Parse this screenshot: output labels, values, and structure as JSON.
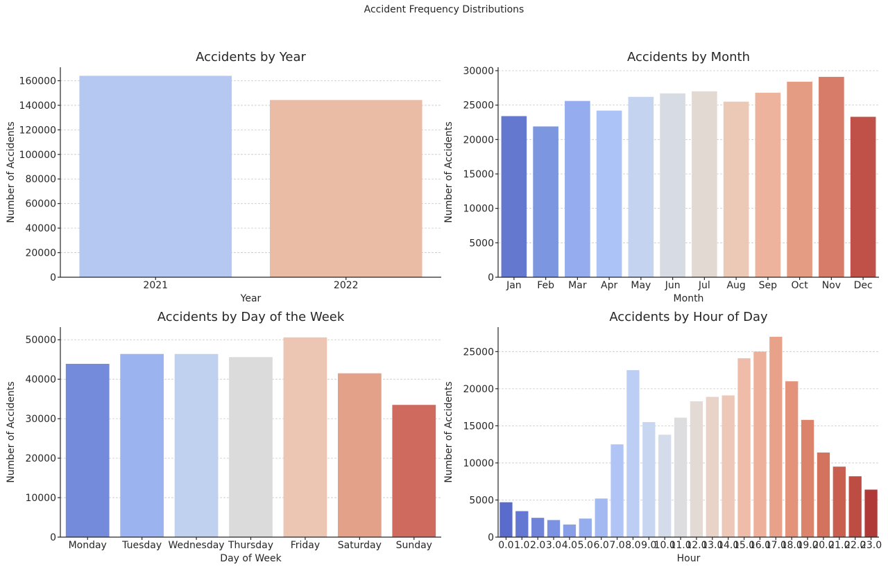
{
  "suptitle": "Accident Frequency Distributions",
  "chart_data": [
    {
      "type": "bar",
      "title": "Accidents by Year",
      "xlabel": "Year",
      "ylabel": "Number of Accidents",
      "categories": [
        "2021",
        "2022"
      ],
      "values": [
        164000,
        144300
      ],
      "colors": [
        "#b4c8f2",
        "#eabca6"
      ],
      "ylim": [
        0,
        171000
      ],
      "yticks": [
        0,
        20000,
        40000,
        60000,
        80000,
        100000,
        120000,
        140000,
        160000
      ],
      "grid": true
    },
    {
      "type": "bar",
      "title": "Accidents by Month",
      "xlabel": "Month",
      "ylabel": "Number of Accidents",
      "categories": [
        "Jan",
        "Feb",
        "Mar",
        "Apr",
        "May",
        "Jun",
        "Jul",
        "Aug",
        "Sep",
        "Oct",
        "Nov",
        "Dec"
      ],
      "values": [
        23400,
        21900,
        25600,
        24200,
        26200,
        26700,
        27000,
        25500,
        26800,
        28400,
        29100,
        23300
      ],
      "colors": [
        "#6478cf",
        "#7d96e0",
        "#95adee",
        "#abc3f6",
        "#c3d3f0",
        "#d6dbe4",
        "#e3d9d3",
        "#ecc8b7",
        "#edb39c",
        "#e49c83",
        "#d67c68",
        "#bf5149"
      ],
      "ylim": [
        0,
        30500
      ],
      "yticks": [
        0,
        5000,
        10000,
        15000,
        20000,
        25000,
        30000
      ],
      "grid": true
    },
    {
      "type": "bar",
      "title": "Accidents by Day of the Week",
      "xlabel": "Day of Week",
      "ylabel": "Number of Accidents",
      "categories": [
        "Monday",
        "Tuesday",
        "Wednesday",
        "Thursday",
        "Friday",
        "Saturday",
        "Sunday"
      ],
      "values": [
        43900,
        46400,
        46400,
        45600,
        50600,
        41500,
        33500
      ],
      "colors": [
        "#748bdb",
        "#9bb4ef",
        "#c0d0ef",
        "#dbdbdb",
        "#ecc6b3",
        "#e4a189",
        "#cf6a5f"
      ],
      "ylim": [
        0,
        53200
      ],
      "yticks": [
        0,
        10000,
        20000,
        30000,
        40000,
        50000
      ],
      "grid": true
    },
    {
      "type": "bar",
      "title": "Accidents by Hour of Day",
      "xlabel": "Hour",
      "ylabel": "Number of Accidents",
      "categories": [
        "0.0",
        "1.0",
        "2.0",
        "3.0",
        "4.0",
        "5.0",
        "6.0",
        "7.0",
        "8.0",
        "9.0",
        "10.0",
        "11.0",
        "12.0",
        "13.0",
        "14.0",
        "15.0",
        "16.0",
        "17.0",
        "18.0",
        "19.0",
        "20.0",
        "21.0",
        "22.0",
        "23.0"
      ],
      "values": [
        4700,
        3500,
        2600,
        2300,
        1700,
        2500,
        5200,
        12500,
        22500,
        15500,
        13800,
        16100,
        18300,
        18900,
        19100,
        24100,
        25000,
        27000,
        21000,
        15800,
        11400,
        9500,
        8200,
        6400
      ],
      "colors": [
        "#5a6ccb",
        "#6477d2",
        "#6f83da",
        "#7b91e1",
        "#889fe8",
        "#95acee",
        "#a3b9f2",
        "#b0c4f5",
        "#bdcef4",
        "#c9d6f1",
        "#d4dbea",
        "#dddde0",
        "#e3dad5",
        "#e9d2c8",
        "#edc8b9",
        "#eebca9",
        "#edb09a",
        "#e9a28a",
        "#e3937a",
        "#dc836b",
        "#d3725d",
        "#c9604f",
        "#bd4d43",
        "#b03a38"
      ],
      "ylim": [
        0,
        28300
      ],
      "yticks": [
        0,
        5000,
        10000,
        15000,
        20000,
        25000
      ],
      "grid": true
    }
  ]
}
